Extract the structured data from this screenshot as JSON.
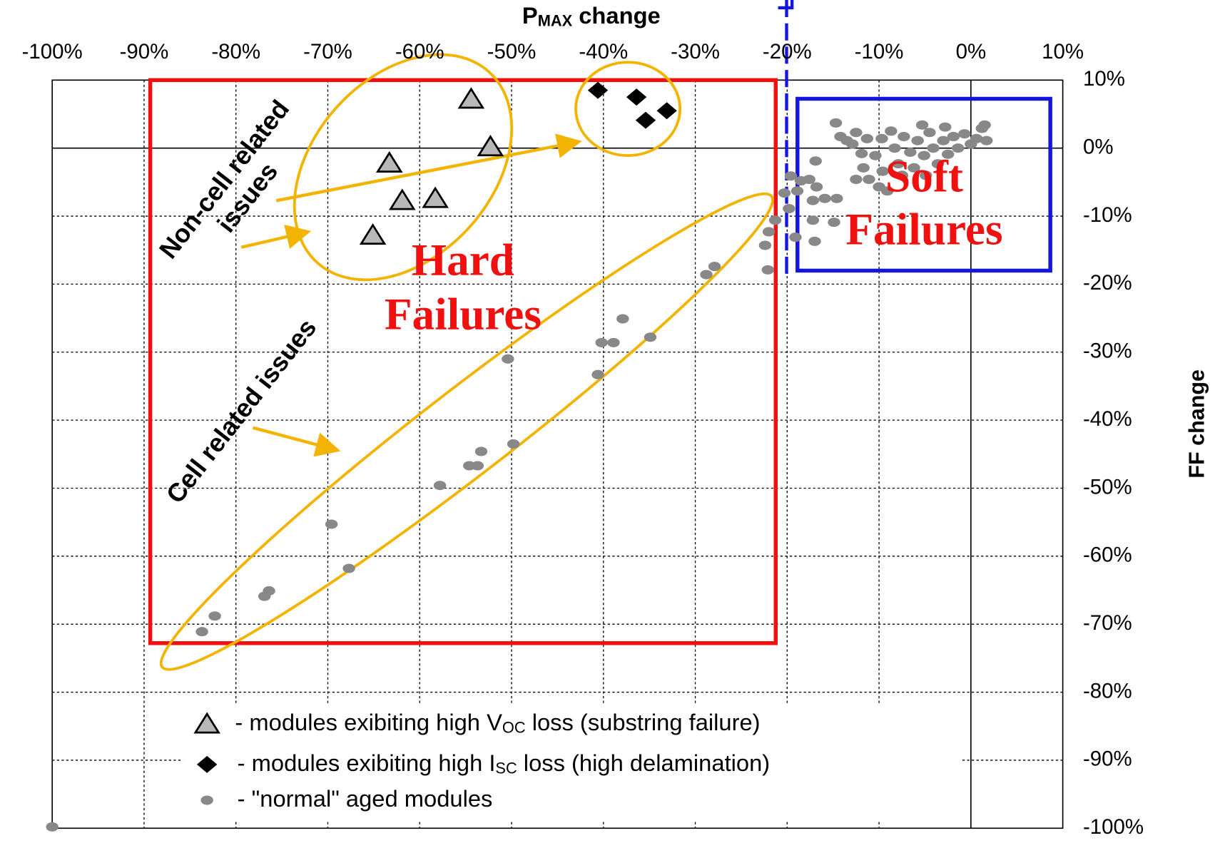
{
  "chart_data": {
    "type": "scatter",
    "xlabel": [
      "P",
      "MAX",
      " change"
    ],
    "ylabel": "FF change",
    "xlim": [
      -100,
      10
    ],
    "ylim": [
      -100,
      10
    ],
    "xticks": [
      {
        "value": -100,
        "label": "-100%"
      },
      {
        "value": -90,
        "label": "-90%"
      },
      {
        "value": -80,
        "label": "-80%"
      },
      {
        "value": -70,
        "label": "-70%"
      },
      {
        "value": -60,
        "label": "-60%"
      },
      {
        "value": -50,
        "label": "-50%"
      },
      {
        "value": -40,
        "label": "-40%"
      },
      {
        "value": -30,
        "label": "-30%"
      },
      {
        "value": -20,
        "label": "-20%"
      },
      {
        "value": -10,
        "label": "-10%"
      },
      {
        "value": 0,
        "label": "0%"
      },
      {
        "value": 10,
        "label": "10%"
      }
    ],
    "yticks": [
      {
        "value": 10,
        "label": "10%"
      },
      {
        "value": 0,
        "label": "0%"
      },
      {
        "value": -10,
        "label": "-10%"
      },
      {
        "value": -20,
        "label": "-20%"
      },
      {
        "value": -30,
        "label": "-30%"
      },
      {
        "value": -40,
        "label": "-40%"
      },
      {
        "value": -50,
        "label": "-50%"
      },
      {
        "value": -60,
        "label": "-60%"
      },
      {
        "value": -70,
        "label": "-70%"
      },
      {
        "value": -80,
        "label": "-80%"
      },
      {
        "value": -90,
        "label": "-90%"
      },
      {
        "value": -100,
        "label": "-100%"
      }
    ],
    "grid": true,
    "series": [
      {
        "name": [
          "- modules exibiting high V",
          "OC",
          " loss (substring failure)"
        ],
        "marker": "triangle",
        "color": "#b8b8b8",
        "x": [
          -54.4,
          -52.3,
          -63.3,
          -61.9,
          -58.3,
          -65.1
        ],
        "y": [
          7.2,
          0.2,
          -2.2,
          -7.7,
          -7.4,
          -12.8
        ]
      },
      {
        "name": [
          "- modules exibiting high I",
          "SC",
          " loss (high delamination)"
        ],
        "marker": "diamond",
        "color": "#000000",
        "x": [
          -40.6,
          -36.4,
          -35.4,
          -33.1
        ],
        "y": [
          8.5,
          7.5,
          4.1,
          5.5
        ]
      },
      {
        "name": [
          "- \"normal\" aged modules"
        ],
        "marker": "dot",
        "color": "#888888",
        "x": [
          -100,
          -83.7,
          -82.3,
          -76.9,
          -76.4,
          -67.7,
          -69.6,
          -57.8,
          -54.6,
          -53.7,
          -53.3,
          -49.8,
          -50.4,
          -40.6,
          -40.2,
          -38.9,
          -37.9,
          -34.9,
          -28.8,
          -27.9,
          -22.1,
          -22.4,
          -22.0,
          -21.3,
          -19.8,
          -19.6,
          -20.3,
          -18.9,
          -19.1,
          -16.9,
          -17.6,
          -16.8,
          -17.2,
          -15.9,
          -14.6,
          -17.0,
          -17.2,
          -14.9,
          -14.7,
          -14.2,
          -12.9,
          -11.9,
          -11.7,
          -11.1,
          -10.4,
          -9.7,
          -9.6,
          -9.1,
          -8.3,
          -7.9,
          -7.3,
          -6.6,
          -6.2,
          -5.8,
          -5.1,
          -4.5,
          -4.1,
          -3.6,
          -3.0,
          -2.5,
          -1.9,
          -1.4,
          -0.7,
          0,
          0.6,
          1.2,
          1.5,
          1.7,
          -12.5,
          -13.5,
          -11.3,
          -8.7,
          -5.3,
          -2.8,
          -7.5,
          -4.9,
          -10.0,
          -12.5,
          -18.5
        ],
        "y": [
          -99.8,
          -71.1,
          -68.8,
          -65.9,
          -65.1,
          -61.8,
          -55.3,
          -49.6,
          -46.7,
          -46.7,
          -44.6,
          -43.5,
          -31.0,
          -33.3,
          -28.6,
          -28.6,
          -25.1,
          -27.8,
          -18.6,
          -17.4,
          -17.9,
          -14.3,
          -12.3,
          -10.6,
          -8.9,
          -4.1,
          -6.6,
          -6.3,
          -13.1,
          -1.9,
          -4.6,
          -5.7,
          -7.7,
          -7.4,
          -7.4,
          -13.7,
          -10.6,
          -10.9,
          3.7,
          1.7,
          0.6,
          -0.8,
          -2.9,
          -4.6,
          -1.1,
          1.4,
          -3.4,
          -6.3,
          0,
          -2.3,
          1.7,
          -0.6,
          -2.9,
          1.1,
          -1.1,
          2.3,
          0,
          -2.3,
          1.1,
          -0.9,
          1.7,
          0,
          2.1,
          0.6,
          1.4,
          2.9,
          3.4,
          1.1,
          2.3,
          1.1,
          1.4,
          2.5,
          3.4,
          3.1,
          -4.0,
          -4.0,
          -5.7,
          -4.6,
          -4.8
        ]
      }
    ],
    "annotations": [
      {
        "lines": [
          "Hard",
          "Failures"
        ]
      },
      {
        "lines": [
          "Soft",
          "Failures"
        ]
      },
      {
        "lines": [
          "Non-cell related",
          "issues"
        ]
      },
      {
        "lines": [
          "Cell related issues"
        ]
      }
    ]
  }
}
